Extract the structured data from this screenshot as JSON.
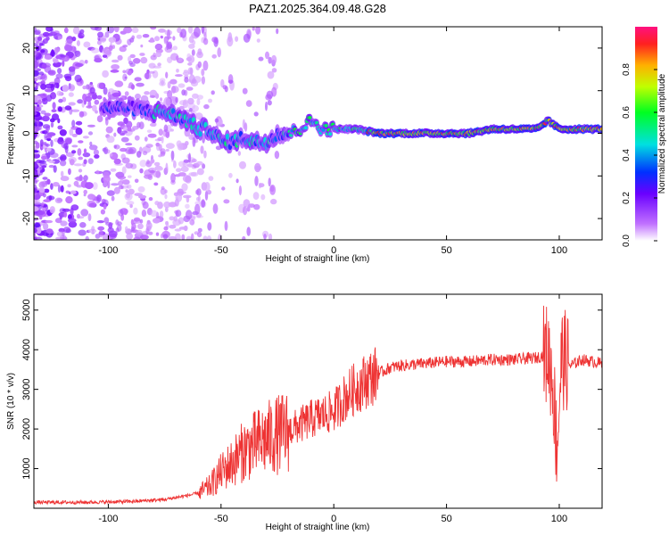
{
  "title": "PAZ1.2025.364.09.48.G28",
  "chart_data": [
    {
      "type": "heatmap",
      "xlabel": "Height of straight line (km)",
      "ylabel": "Frequency (Hz)",
      "xlim": [
        -133,
        119
      ],
      "ylim": [
        -25,
        25
      ],
      "xticks": [
        -100,
        -50,
        0,
        50,
        100
      ],
      "yticks": [
        -20,
        -10,
        0,
        10,
        20
      ],
      "colorbar": {
        "label": "Normalized spectral amplitude",
        "range": [
          0,
          1
        ],
        "ticks": [
          "0.0",
          "0.2",
          "0.4",
          "0.6",
          "0.8"
        ]
      },
      "ridge": {
        "x": [
          -100,
          -90,
          -80,
          -75,
          -70,
          -65,
          -60,
          -55,
          -50,
          -45,
          -40,
          -35,
          -30,
          -25,
          -20,
          -15,
          -10,
          -5,
          0,
          10,
          20,
          30,
          40,
          50,
          60,
          70,
          80,
          90,
          95,
          100,
          110,
          119
        ],
        "freq": [
          6,
          6,
          5,
          5,
          4,
          3,
          1,
          1,
          -2,
          -2,
          -1,
          -2,
          -2,
          0,
          0,
          1,
          3,
          1,
          1,
          1,
          0,
          0,
          0,
          0,
          0,
          1,
          1,
          1,
          3,
          1,
          1,
          1
        ]
      }
    },
    {
      "type": "line",
      "xlabel": "Height of straight line (km)",
      "ylabel": "SNR (10 * v/v)",
      "xlim": [
        -133,
        119
      ],
      "ylim": [
        0,
        5400
      ],
      "xticks": [
        -100,
        -50,
        0,
        50,
        100
      ],
      "yticks": [
        1000,
        2000,
        3000,
        4000,
        5000
      ],
      "series": [
        {
          "name": "SNR",
          "color": "#ee3333",
          "x": [
            -133,
            -110,
            -90,
            -75,
            -65,
            -60,
            -55,
            -50,
            -45,
            -40,
            -35,
            -30,
            -25,
            -20,
            -15,
            -10,
            -5,
            0,
            5,
            10,
            15,
            20,
            25,
            30,
            40,
            50,
            60,
            70,
            80,
            90,
            95,
            97,
            99,
            101,
            105,
            110,
            115,
            119
          ],
          "y": [
            150,
            150,
            170,
            220,
            320,
            380,
            550,
            900,
            1150,
            1450,
            1600,
            1750,
            1850,
            1950,
            2100,
            2250,
            2350,
            2450,
            2800,
            3050,
            3250,
            3400,
            3550,
            3600,
            3650,
            3700,
            3700,
            3750,
            3750,
            3800,
            3900,
            3300,
            1500,
            3800,
            3600,
            3750,
            3700,
            3650
          ]
        }
      ]
    }
  ]
}
